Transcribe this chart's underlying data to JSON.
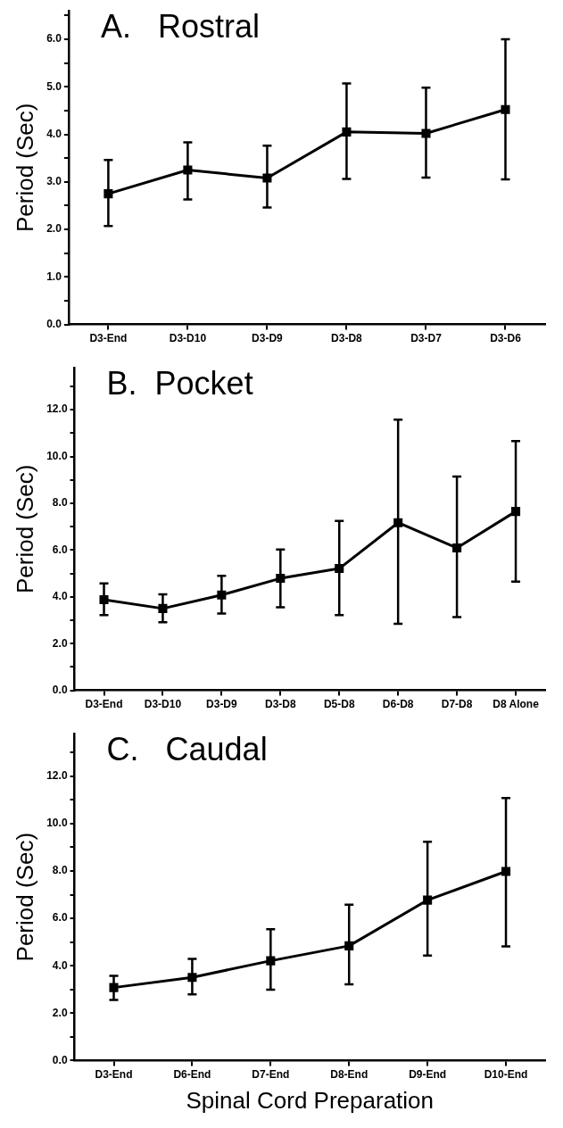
{
  "chart_data": [
    {
      "type": "line",
      "title": "A.   Rostral",
      "ylabel": "Period (Sec)",
      "categories": [
        "D3-End",
        "D3-D10",
        "D3-D9",
        "D3-D8",
        "D3-D7",
        "D3-D6"
      ],
      "series": [
        {
          "color": "#000000",
          "values": [
            2.75,
            3.25,
            3.08,
            4.05,
            4.02,
            4.52
          ],
          "errors": [
            [
              2.07,
              3.46
            ],
            [
              2.63,
              3.83
            ],
            [
              2.46,
              3.76
            ],
            [
              3.06,
              5.07
            ],
            [
              3.09,
              4.98
            ],
            [
              3.05,
              6.0
            ]
          ]
        }
      ],
      "ylim": [
        0,
        6.6
      ],
      "yticks": [
        {
          "value": 0,
          "label": "0.0"
        },
        {
          "value": 0.5,
          "label": null
        },
        {
          "value": 1,
          "label": "1.0"
        },
        {
          "value": 1.5,
          "label": null
        },
        {
          "value": 2,
          "label": "2.0"
        },
        {
          "value": 2.5,
          "label": null
        },
        {
          "value": 3,
          "label": "3.0"
        },
        {
          "value": 3.5,
          "label": null
        },
        {
          "value": 4,
          "label": "4.0"
        },
        {
          "value": 4.5,
          "label": null
        },
        {
          "value": 5,
          "label": "5.0"
        },
        {
          "value": 5.5,
          "label": null
        },
        {
          "value": 6,
          "label": "6.0"
        },
        {
          "value": 6.5,
          "label": null
        }
      ],
      "grid": false,
      "legend": false,
      "marker": "square",
      "line_style": "solid"
    },
    {
      "type": "line",
      "title": "B.  Pocket",
      "ylabel": "Period (Sec)",
      "categories": [
        "D3-End",
        "D3-D10",
        "D3-D9",
        "D3-D8",
        "D5-D8",
        "D6-D8",
        "D7-D8",
        "D8 Alone"
      ],
      "series": [
        {
          "color": "#000000",
          "values": [
            3.88,
            3.5,
            4.08,
            4.79,
            5.21,
            7.17,
            6.09,
            7.65
          ],
          "errors": [
            [
              3.22,
              4.57
            ],
            [
              2.91,
              4.11
            ],
            [
              3.29,
              4.9
            ],
            [
              3.55,
              6.02
            ],
            [
              3.22,
              7.25
            ],
            [
              2.85,
              11.58
            ],
            [
              3.13,
              9.14
            ],
            [
              4.65,
              10.66
            ]
          ]
        }
      ],
      "ylim": [
        0,
        13.8
      ],
      "yticks": [
        {
          "value": 0,
          "label": "0.0"
        },
        {
          "value": 1,
          "label": null
        },
        {
          "value": 2,
          "label": "2.0"
        },
        {
          "value": 3,
          "label": null
        },
        {
          "value": 4,
          "label": "4.0"
        },
        {
          "value": 5,
          "label": null
        },
        {
          "value": 6,
          "label": "6.0"
        },
        {
          "value": 7,
          "label": null
        },
        {
          "value": 8,
          "label": "8.0"
        },
        {
          "value": 9,
          "label": null
        },
        {
          "value": 10,
          "label": "10.0"
        },
        {
          "value": 11,
          "label": null
        },
        {
          "value": 12,
          "label": "12.0"
        },
        {
          "value": 13,
          "label": null
        }
      ],
      "grid": false,
      "legend": false,
      "marker": "square",
      "line_style": "solid"
    },
    {
      "type": "line",
      "title": "C.   Caudal",
      "ylabel": "Period (Sec)",
      "xlabel": "Spinal Cord Preparation",
      "categories": [
        "D3-End",
        "D6-End",
        "D7-End",
        "D8-End",
        "D9-End",
        "D10-End"
      ],
      "series": [
        {
          "color": "#000000",
          "values": [
            3.08,
            3.51,
            4.21,
            4.84,
            6.77,
            7.98
          ],
          "errors": [
            [
              2.56,
              3.57
            ],
            [
              2.79,
              4.29
            ],
            [
              2.99,
              5.54
            ],
            [
              3.22,
              6.58
            ],
            [
              4.43,
              9.23
            ],
            [
              4.82,
              11.08
            ]
          ]
        }
      ],
      "ylim": [
        0,
        13.8
      ],
      "yticks": [
        {
          "value": 0,
          "label": "0.0"
        },
        {
          "value": 1,
          "label": null
        },
        {
          "value": 2,
          "label": "2.0"
        },
        {
          "value": 3,
          "label": null
        },
        {
          "value": 4,
          "label": "4.0"
        },
        {
          "value": 5,
          "label": null
        },
        {
          "value": 6,
          "label": "6.0"
        },
        {
          "value": 7,
          "label": null
        },
        {
          "value": 8,
          "label": "8.0"
        },
        {
          "value": 9,
          "label": null
        },
        {
          "value": 10,
          "label": "10.0"
        },
        {
          "value": 11,
          "label": null
        },
        {
          "value": 12,
          "label": "12.0"
        },
        {
          "value": 13,
          "label": null
        }
      ],
      "grid": false,
      "legend": false,
      "marker": "square",
      "line_style": "solid"
    }
  ]
}
